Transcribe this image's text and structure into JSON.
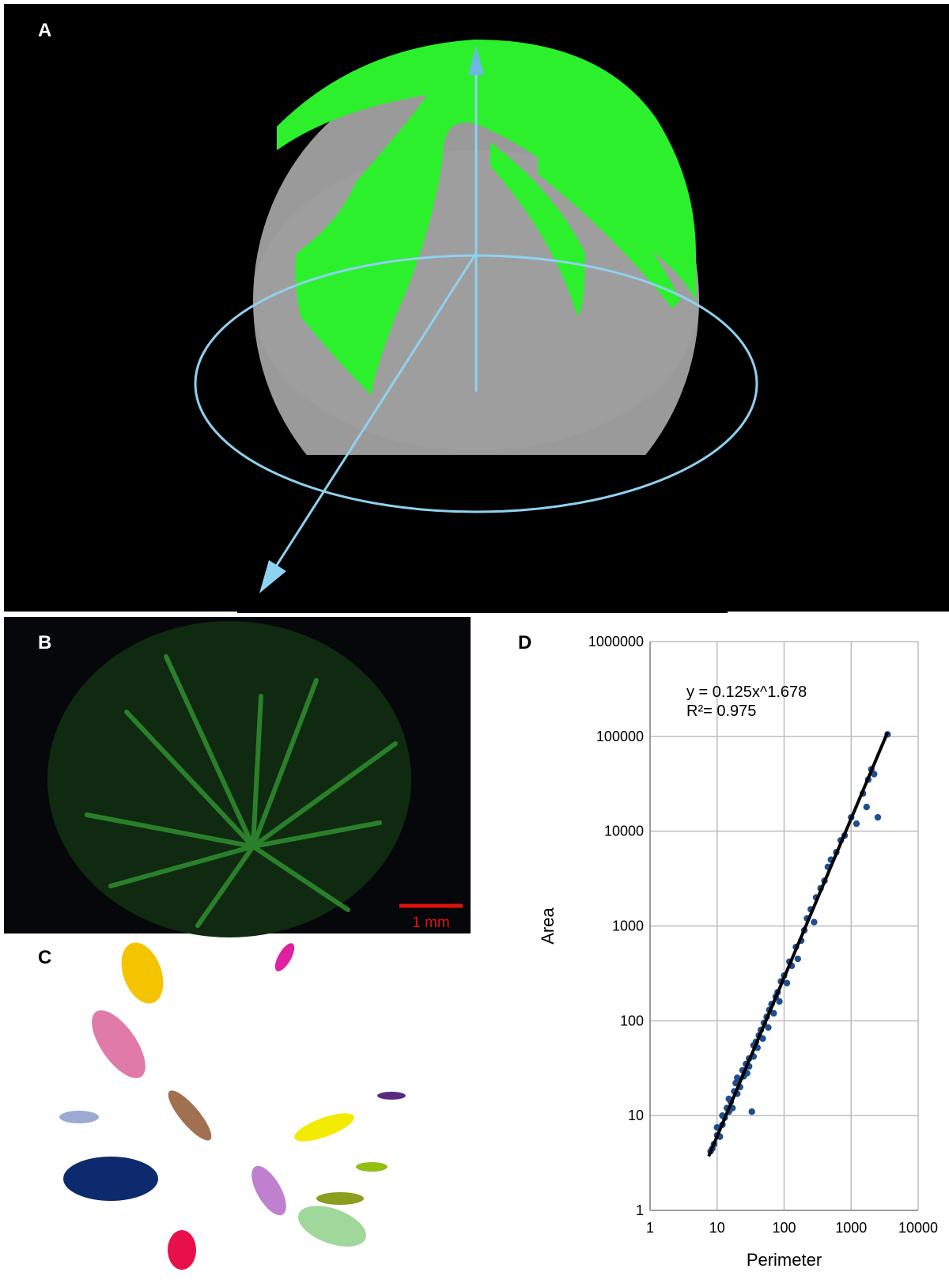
{
  "panels": {
    "a": {
      "label": "A"
    },
    "b": {
      "label": "B",
      "scale_bar": "1 mm"
    },
    "c": {
      "label": "C"
    },
    "d": {
      "label": "D"
    }
  },
  "chart_data": {
    "type": "scatter",
    "xlabel": "Perimeter",
    "ylabel": "Area",
    "xscale": "log",
    "yscale": "log",
    "grid": true,
    "xlim": [
      1,
      10000
    ],
    "ylim": [
      1,
      1000000
    ],
    "xticks": [
      1,
      10,
      100,
      1000,
      10000
    ],
    "yticks": [
      1,
      10,
      100,
      1000,
      10000,
      100000,
      1000000
    ],
    "annotations": [
      "y = 0.125x^1.678",
      "R²= 0.975"
    ],
    "series": [
      {
        "color": "#1f4e8c",
        "x": [
          8,
          8.5,
          9,
          10,
          10,
          11,
          12,
          12,
          13,
          14,
          15,
          15,
          16,
          17,
          18,
          19,
          20,
          20,
          22,
          24,
          25,
          27,
          28,
          30,
          30,
          33,
          35,
          35,
          38,
          40,
          42,
          45,
          48,
          50,
          55,
          58,
          60,
          65,
          70,
          75,
          80,
          85,
          90,
          100,
          110,
          120,
          130,
          150,
          160,
          180,
          200,
          220,
          250,
          280,
          300,
          350,
          400,
          450,
          500,
          600,
          700,
          800,
          1000,
          1200,
          1500,
          1700,
          1800,
          2000,
          2200,
          2500,
          3500
        ],
        "values": [
          4.2,
          4.5,
          5,
          6.2,
          7.5,
          6,
          8,
          10,
          9.5,
          12,
          11,
          15,
          14,
          12,
          18,
          22,
          17,
          25,
          20,
          30,
          26,
          35,
          28,
          40,
          33,
          11,
          55,
          42,
          60,
          52,
          70,
          80,
          65,
          95,
          110,
          85,
          130,
          150,
          120,
          180,
          200,
          160,
          260,
          300,
          250,
          420,
          380,
          600,
          450,
          700,
          900,
          1200,
          1500,
          1100,
          2000,
          2500,
          3000,
          4200,
          5000,
          6000,
          8000,
          9000,
          14000,
          12000,
          25000,
          18000,
          35000,
          45000,
          40000,
          14000,
          105000
        ]
      }
    ],
    "trendline": {
      "color": "#000000",
      "x": [
        7.5,
        3500
      ],
      "y": [
        3.72,
        110700
      ]
    }
  }
}
